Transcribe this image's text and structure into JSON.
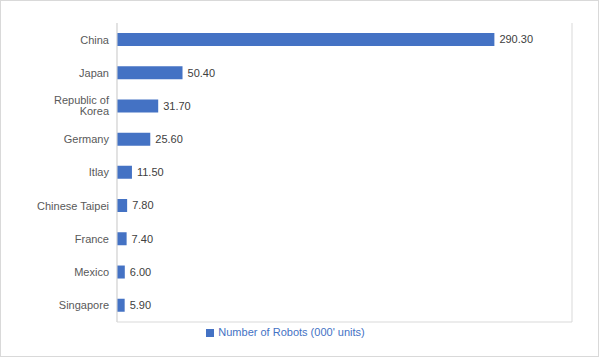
{
  "chart_data": {
    "type": "bar",
    "orientation": "horizontal",
    "categories": [
      "China",
      "Japan",
      "Republic of Korea",
      "Germany",
      "Itlay",
      "Chinese Taipei",
      "France",
      "Mexico",
      "Singapore"
    ],
    "series": [
      {
        "name": "Number of Robots (000' units)",
        "color": "#4472c4",
        "values": [
          290.3,
          50.4,
          31.7,
          25.6,
          11.5,
          7.8,
          7.4,
          6.0,
          5.9
        ],
        "value_labels": [
          "290.30",
          "50.40",
          "31.70",
          "25.60",
          "11.50",
          "7.80",
          "7.40",
          "6.00",
          "5.90"
        ]
      }
    ],
    "xlim": [
      0,
      350
    ],
    "xticks": [
      0,
      50,
      100,
      150,
      200,
      250,
      300,
      350
    ],
    "grid": true,
    "tick_labels": "y",
    "data_labels": true,
    "legend": "bottom"
  }
}
